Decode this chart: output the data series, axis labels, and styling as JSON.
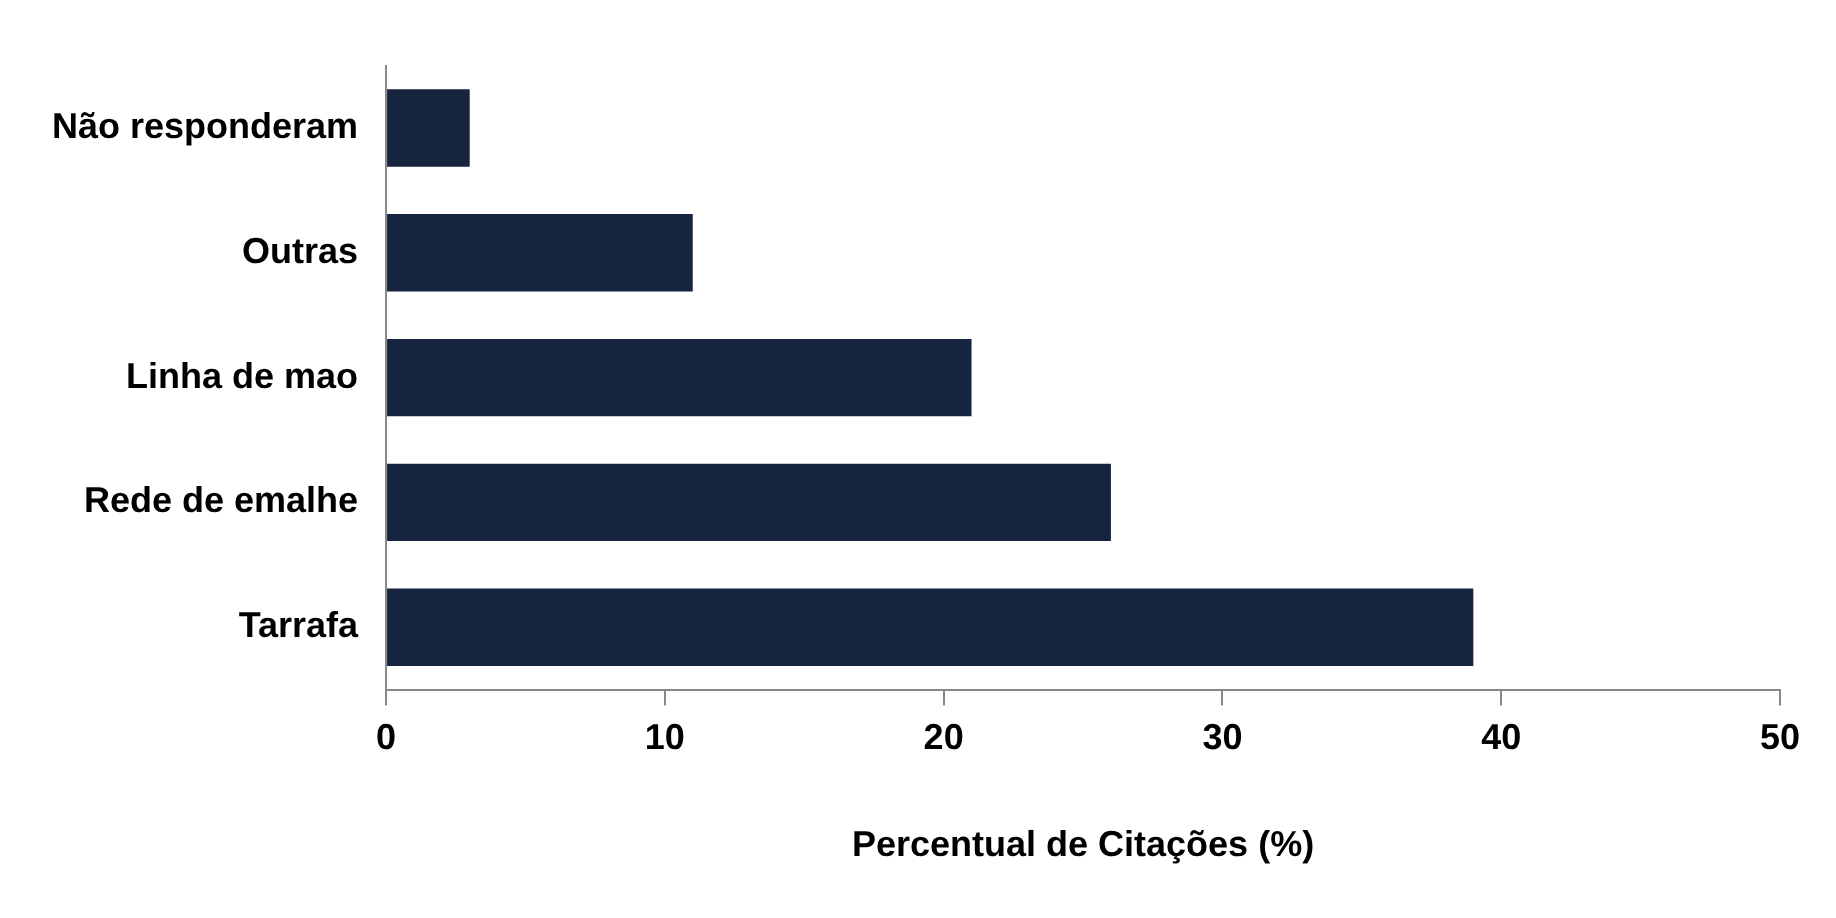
{
  "chart_data": {
    "type": "bar",
    "orientation": "horizontal",
    "xlabel": "Percentual de Citações (%)",
    "categories": [
      "Não responderam",
      "Outras",
      "Linha de mao",
      "Rede de emalhe",
      "Tarrafa"
    ],
    "values": [
      3,
      11,
      21,
      26,
      39
    ],
    "color": "#172440",
    "xlim": [
      0,
      50
    ],
    "xticks": [
      0,
      10,
      20,
      30,
      40,
      50
    ],
    "grid": false,
    "legend": false
  }
}
